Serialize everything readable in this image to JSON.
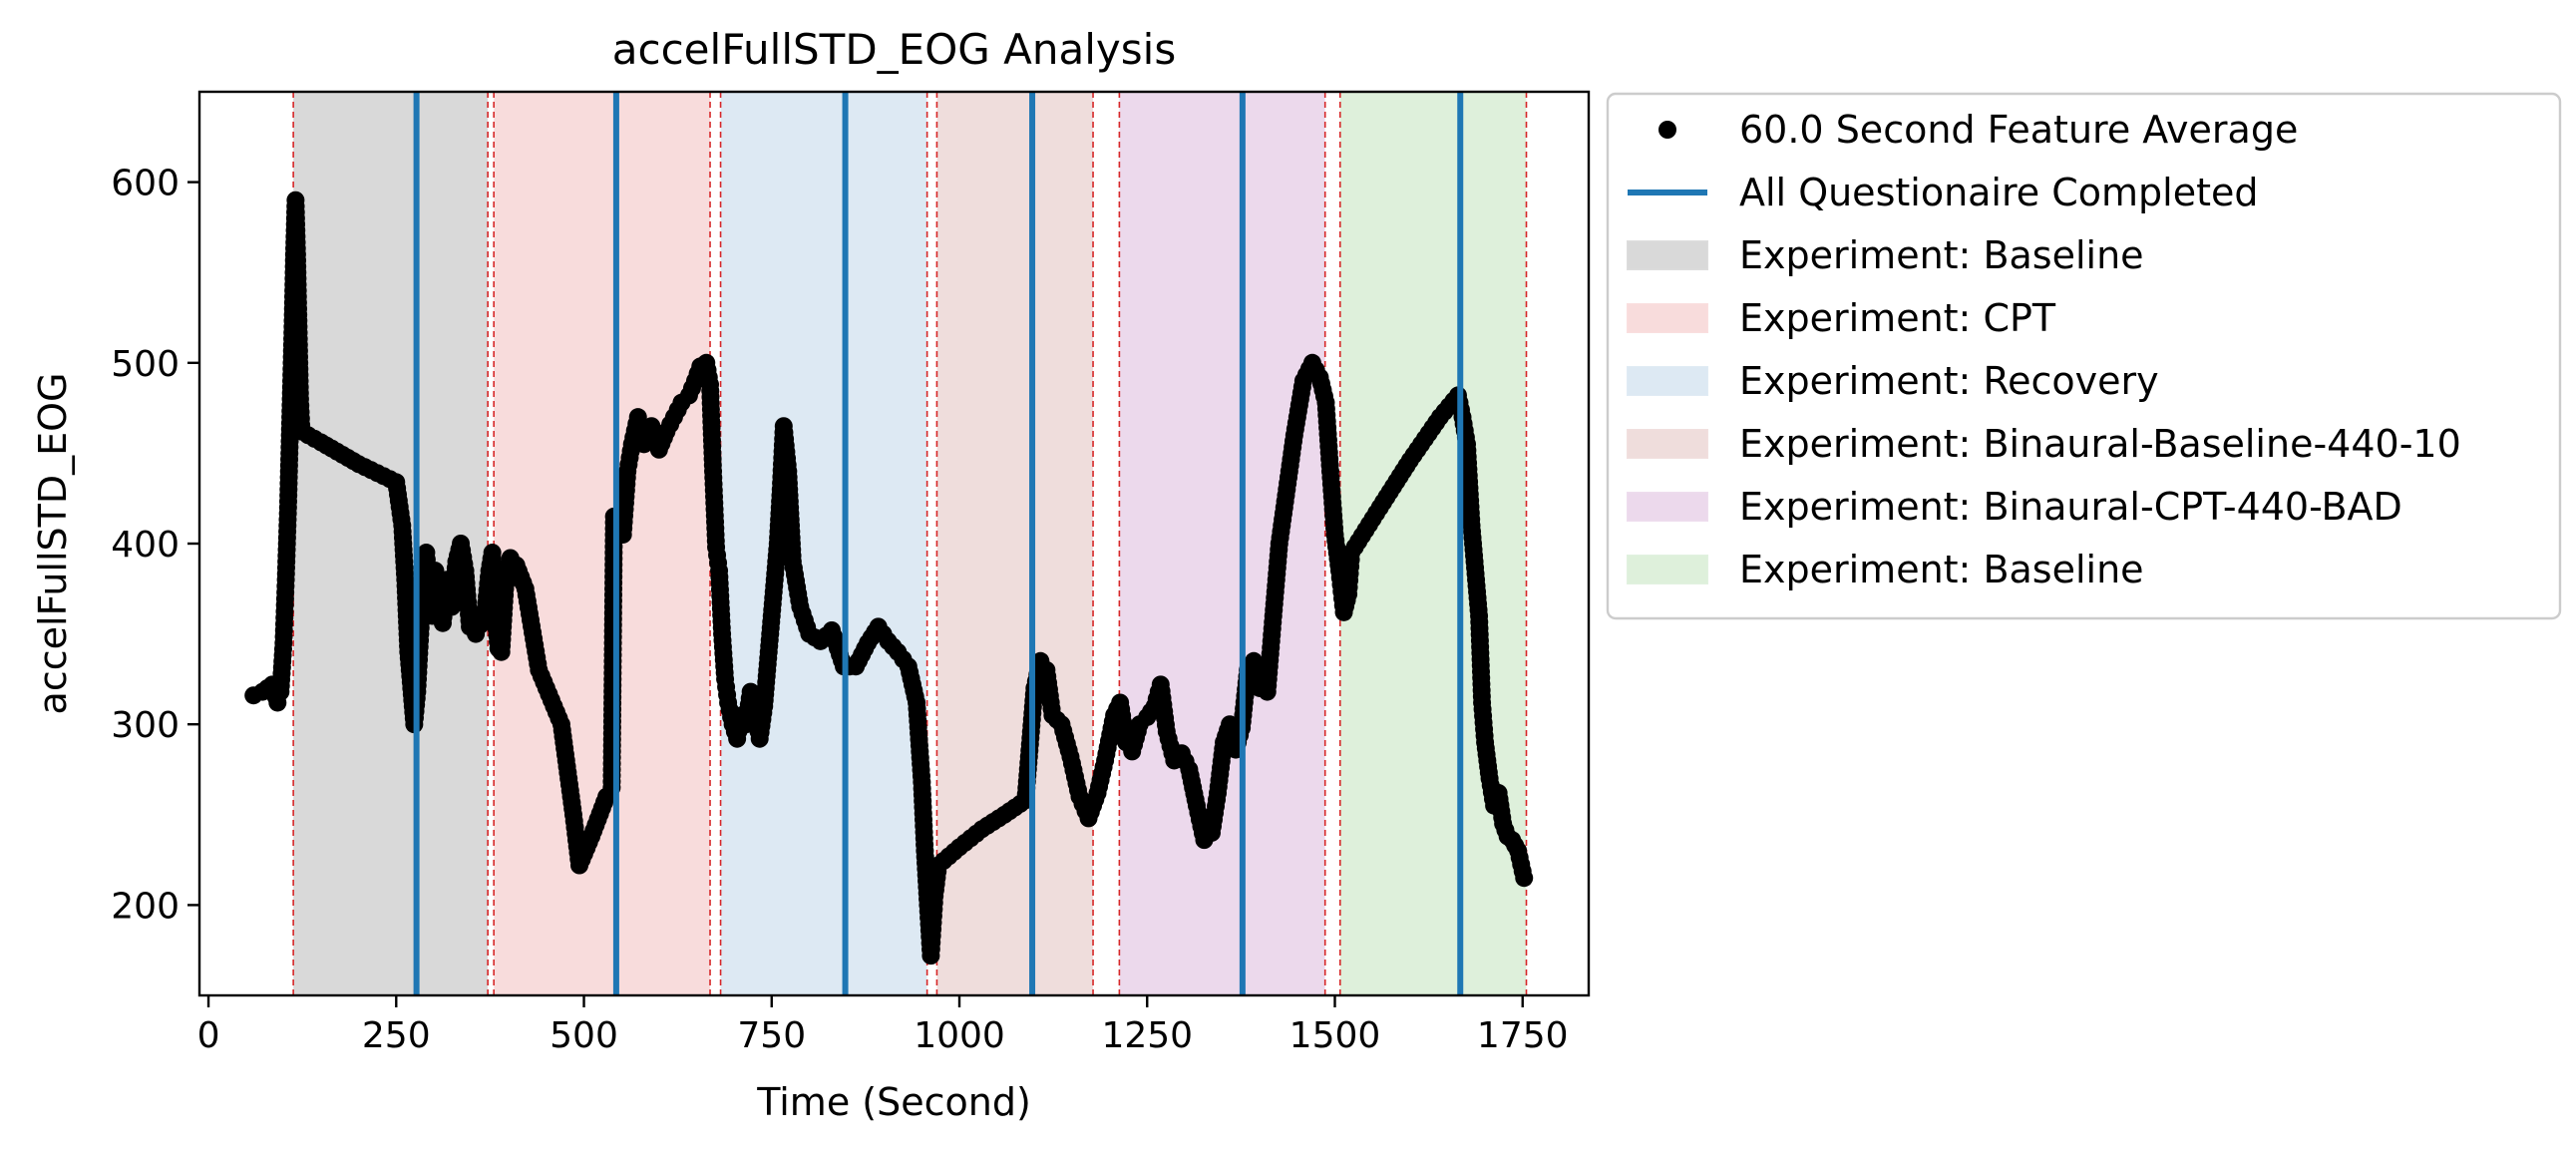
{
  "chart_data": {
    "type": "scatter",
    "title": "accelFullSTD_EOG Analysis",
    "xlabel": "Time (Second)",
    "ylabel": "accelFullSTD_EOG",
    "xlim": [
      -12,
      1838
    ],
    "ylim": [
      150,
      650
    ],
    "xticks": [
      0,
      250,
      500,
      750,
      1000,
      1250,
      1500,
      1750
    ],
    "yticks": [
      200,
      300,
      400,
      500,
      600
    ],
    "legend_position": "outside-right",
    "grid": false,
    "legend": [
      {
        "label": "60.0 Second Feature Average",
        "kind": "marker",
        "color": "#000000"
      },
      {
        "label": "All Questionaire Completed",
        "kind": "line",
        "color": "#1f77b4"
      },
      {
        "label": "Experiment: Baseline",
        "kind": "patch",
        "color": "#d9d9d9"
      },
      {
        "label": "Experiment: CPT",
        "kind": "patch",
        "color": "#f8dcdc"
      },
      {
        "label": "Experiment: Recovery",
        "kind": "patch",
        "color": "#dde9f3"
      },
      {
        "label": "Experiment: Binaural-Baseline-440-10",
        "kind": "patch",
        "color": "#efdddc"
      },
      {
        "label": "Experiment: Binaural-CPT-440-BAD",
        "kind": "patch",
        "color": "#ecd9ec"
      },
      {
        "label": "Experiment: Baseline",
        "kind": "patch",
        "color": "#def0db"
      }
    ],
    "experiment_spans": [
      {
        "name": "Experiment: Baseline",
        "start": 113,
        "end": 372,
        "color": "#d9d9d9"
      },
      {
        "name": "Experiment: CPT",
        "start": 380,
        "end": 668,
        "color": "#f8dcdc"
      },
      {
        "name": "Experiment: Recovery",
        "start": 682,
        "end": 957,
        "color": "#dde9f3"
      },
      {
        "name": "Experiment: Binaural-Baseline-440-10",
        "start": 970,
        "end": 1178,
        "color": "#efdddc"
      },
      {
        "name": "Experiment: Binaural-CPT-440-BAD",
        "start": 1213,
        "end": 1487,
        "color": "#ecd9ec"
      },
      {
        "name": "Experiment: Baseline",
        "start": 1507,
        "end": 1755,
        "color": "#def0db"
      }
    ],
    "questionnaire_completed": [
      277,
      543,
      848,
      1097,
      1377,
      1667
    ],
    "series": [
      {
        "name": "60.0 Second Feature Average",
        "points": [
          [
            60,
            316
          ],
          [
            72,
            318
          ],
          [
            85,
            322
          ],
          [
            92,
            312
          ],
          [
            96,
            318
          ],
          [
            100,
            345
          ],
          [
            103,
            380
          ],
          [
            106,
            420
          ],
          [
            109,
            470
          ],
          [
            112,
            520
          ],
          [
            114,
            560
          ],
          [
            116,
            590
          ],
          [
            118,
            560
          ],
          [
            120,
            520
          ],
          [
            122,
            480
          ],
          [
            124,
            462
          ],
          [
            150,
            456
          ],
          [
            200,
            444
          ],
          [
            250,
            434
          ],
          [
            258,
            410
          ],
          [
            262,
            380
          ],
          [
            266,
            340
          ],
          [
            270,
            320
          ],
          [
            274,
            300
          ],
          [
            278,
            318
          ],
          [
            282,
            350
          ],
          [
            286,
            380
          ],
          [
            290,
            395
          ],
          [
            294,
            372
          ],
          [
            298,
            360
          ],
          [
            302,
            385
          ],
          [
            306,
            372
          ],
          [
            312,
            356
          ],
          [
            318,
            380
          ],
          [
            324,
            365
          ],
          [
            330,
            390
          ],
          [
            336,
            400
          ],
          [
            342,
            385
          ],
          [
            348,
            354
          ],
          [
            356,
            350
          ],
          [
            362,
            355
          ],
          [
            368,
            360
          ],
          [
            374,
            385
          ],
          [
            378,
            395
          ],
          [
            382,
            360
          ],
          [
            386,
            342
          ],
          [
            390,
            340
          ],
          [
            395,
            375
          ],
          [
            402,
            392
          ],
          [
            410,
            388
          ],
          [
            422,
            375
          ],
          [
            440,
            330
          ],
          [
            470,
            300
          ],
          [
            486,
            250
          ],
          [
            494,
            222
          ],
          [
            510,
            238
          ],
          [
            530,
            260
          ],
          [
            537,
            265
          ],
          [
            540,
            415
          ],
          [
            545,
            412
          ],
          [
            552,
            405
          ],
          [
            558,
            440
          ],
          [
            564,
            455
          ],
          [
            572,
            470
          ],
          [
            580,
            455
          ],
          [
            590,
            465
          ],
          [
            600,
            452
          ],
          [
            610,
            462
          ],
          [
            620,
            470
          ],
          [
            630,
            478
          ],
          [
            640,
            482
          ],
          [
            648,
            490
          ],
          [
            655,
            498
          ],
          [
            663,
            500
          ],
          [
            668,
            488
          ],
          [
            672,
            440
          ],
          [
            676,
            398
          ],
          [
            680,
            385
          ],
          [
            684,
            350
          ],
          [
            688,
            325
          ],
          [
            692,
            312
          ],
          [
            698,
            300
          ],
          [
            704,
            292
          ],
          [
            710,
            305
          ],
          [
            716,
            300
          ],
          [
            722,
            318
          ],
          [
            728,
            308
          ],
          [
            734,
            292
          ],
          [
            740,
            310
          ],
          [
            746,
            340
          ],
          [
            752,
            370
          ],
          [
            758,
            400
          ],
          [
            762,
            430
          ],
          [
            766,
            465
          ],
          [
            772,
            440
          ],
          [
            778,
            390
          ],
          [
            788,
            365
          ],
          [
            800,
            350
          ],
          [
            815,
            346
          ],
          [
            830,
            352
          ],
          [
            846,
            332
          ],
          [
            862,
            332
          ],
          [
            878,
            345
          ],
          [
            892,
            354
          ],
          [
            905,
            346
          ],
          [
            918,
            340
          ],
          [
            932,
            332
          ],
          [
            943,
            312
          ],
          [
            950,
            268
          ],
          [
            954,
            230
          ],
          [
            958,
            200
          ],
          [
            962,
            172
          ],
          [
            967,
            205
          ],
          [
            972,
            222
          ],
          [
            1000,
            232
          ],
          [
            1030,
            242
          ],
          [
            1060,
            250
          ],
          [
            1088,
            258
          ],
          [
            1100,
            320
          ],
          [
            1108,
            335
          ],
          [
            1116,
            330
          ],
          [
            1124,
            305
          ],
          [
            1136,
            300
          ],
          [
            1148,
            282
          ],
          [
            1160,
            260
          ],
          [
            1172,
            248
          ],
          [
            1184,
            262
          ],
          [
            1194,
            280
          ],
          [
            1206,
            305
          ],
          [
            1214,
            312
          ],
          [
            1222,
            290
          ],
          [
            1230,
            285
          ],
          [
            1240,
            300
          ],
          [
            1250,
            304
          ],
          [
            1260,
            310
          ],
          [
            1268,
            322
          ],
          [
            1276,
            296
          ],
          [
            1286,
            280
          ],
          [
            1296,
            284
          ],
          [
            1306,
            275
          ],
          [
            1316,
            255
          ],
          [
            1326,
            236
          ],
          [
            1336,
            240
          ],
          [
            1344,
            262
          ],
          [
            1352,
            290
          ],
          [
            1360,
            300
          ],
          [
            1368,
            286
          ],
          [
            1376,
            298
          ],
          [
            1384,
            330
          ],
          [
            1392,
            335
          ],
          [
            1400,
            320
          ],
          [
            1410,
            318
          ],
          [
            1418,
            360
          ],
          [
            1426,
            400
          ],
          [
            1436,
            430
          ],
          [
            1446,
            460
          ],
          [
            1458,
            490
          ],
          [
            1470,
            500
          ],
          [
            1480,
            492
          ],
          [
            1488,
            478
          ],
          [
            1494,
            440
          ],
          [
            1500,
            405
          ],
          [
            1506,
            385
          ],
          [
            1512,
            362
          ],
          [
            1518,
            372
          ],
          [
            1522,
            395
          ],
          [
            1560,
            420
          ],
          [
            1600,
            446
          ],
          [
            1640,
            470
          ],
          [
            1664,
            482
          ],
          [
            1670,
            470
          ],
          [
            1676,
            455
          ],
          [
            1682,
            410
          ],
          [
            1688,
            380
          ],
          [
            1692,
            360
          ],
          [
            1696,
            312
          ],
          [
            1700,
            290
          ],
          [
            1706,
            270
          ],
          [
            1712,
            255
          ],
          [
            1718,
            262
          ],
          [
            1724,
            245
          ],
          [
            1730,
            238
          ],
          [
            1736,
            236
          ],
          [
            1744,
            230
          ],
          [
            1752,
            215
          ]
        ]
      }
    ]
  }
}
